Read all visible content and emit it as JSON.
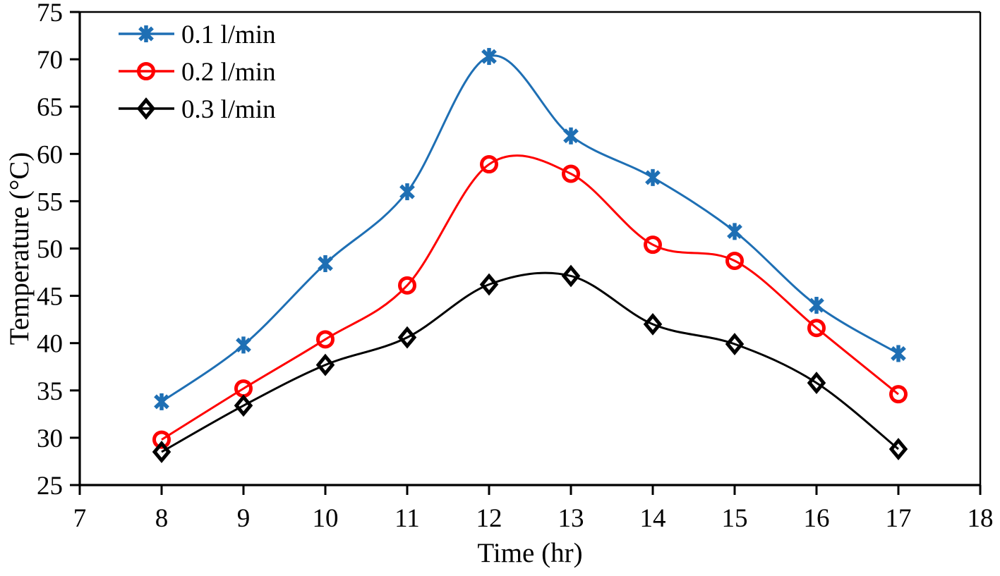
{
  "chart_data": {
    "type": "line",
    "title": "",
    "xlabel": "Time (hr)",
    "ylabel": "Temperature (°C)",
    "xlim": [
      7,
      18
    ],
    "ylim": [
      25,
      75
    ],
    "x_ticks": [
      7,
      8,
      9,
      10,
      11,
      12,
      13,
      14,
      15,
      16,
      17,
      18
    ],
    "y_ticks": [
      25,
      30,
      35,
      40,
      45,
      50,
      55,
      60,
      65,
      70,
      75
    ],
    "grid": false,
    "smooth": true,
    "legend_position": "top-left",
    "x": [
      8,
      9,
      10,
      11,
      12,
      13,
      14,
      15,
      16,
      17
    ],
    "series": [
      {
        "name": "0.1 l/min",
        "color": "#1e6fb4",
        "marker": "asterisk",
        "values": [
          33.8,
          39.8,
          48.4,
          56.0,
          70.3,
          61.9,
          57.5,
          51.8,
          44.0,
          38.9
        ]
      },
      {
        "name": "0.2 l/min",
        "color": "#fe0000",
        "marker": "circle",
        "values": [
          29.8,
          35.2,
          40.4,
          46.1,
          58.9,
          57.9,
          50.4,
          48.7,
          41.6,
          34.6
        ]
      },
      {
        "name": "0.3 l/min",
        "color": "#000000",
        "marker": "diamond",
        "values": [
          28.5,
          33.4,
          37.7,
          40.6,
          46.2,
          47.1,
          42.0,
          39.9,
          35.8,
          28.8
        ]
      }
    ],
    "axis_color": "#000000"
  }
}
